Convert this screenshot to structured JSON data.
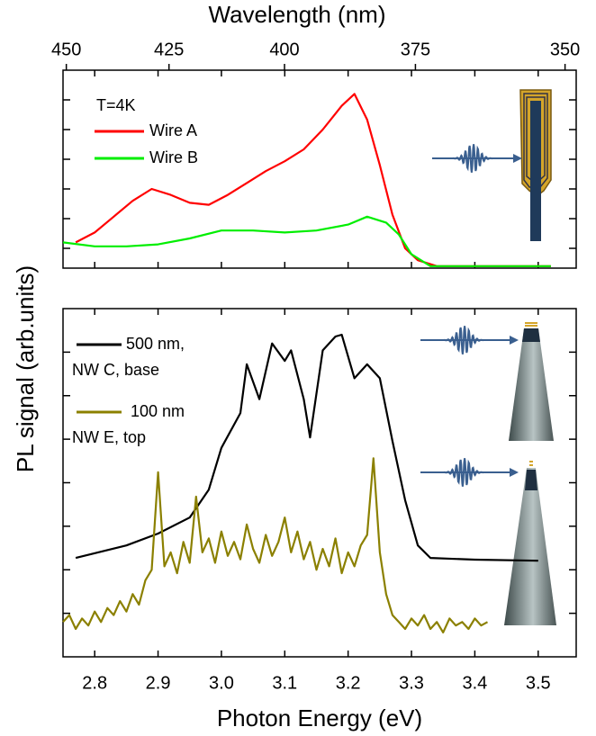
{
  "chart_data": [
    {
      "type": "line",
      "x2label": "Wavelength (nm)",
      "x2ticks": [
        450,
        425,
        400,
        375,
        350
      ],
      "xlim": [
        2.75,
        3.56
      ],
      "ylim": [
        0,
        1
      ],
      "yticks": [
        0.1,
        0.25,
        0.4,
        0.55,
        0.7,
        0.85
      ],
      "annotation": "T=4K",
      "series": [
        {
          "name": "Wire A",
          "color": "#ff0000",
          "x": [
            2.77,
            2.8,
            2.83,
            2.86,
            2.89,
            2.92,
            2.95,
            2.98,
            3.01,
            3.04,
            3.07,
            3.1,
            3.13,
            3.16,
            3.19,
            3.21,
            3.23,
            3.25,
            3.27,
            3.29,
            3.31,
            3.34,
            3.4,
            3.46,
            3.52
          ],
          "values": [
            0.13,
            0.18,
            0.26,
            0.34,
            0.4,
            0.37,
            0.33,
            0.32,
            0.37,
            0.43,
            0.49,
            0.54,
            0.6,
            0.7,
            0.82,
            0.88,
            0.75,
            0.52,
            0.27,
            0.1,
            0.04,
            0.01,
            0.01,
            0.01,
            0.01
          ]
        },
        {
          "name": "Wire B",
          "color": "#00ee00",
          "x": [
            2.75,
            2.8,
            2.85,
            2.9,
            2.95,
            3.0,
            3.05,
            3.1,
            3.15,
            3.2,
            3.23,
            3.26,
            3.28,
            3.3,
            3.33,
            3.4,
            3.52
          ],
          "values": [
            0.13,
            0.11,
            0.11,
            0.12,
            0.15,
            0.19,
            0.19,
            0.18,
            0.19,
            0.22,
            0.26,
            0.23,
            0.17,
            0.07,
            0.01,
            0.01,
            0.01
          ]
        }
      ]
    },
    {
      "type": "line",
      "xlabel": "Photon Energy (eV)",
      "ylabel": "PL signal (arb.units)",
      "xlim": [
        2.75,
        3.56
      ],
      "xticks": [
        2.8,
        2.9,
        {
          "value": 3,
          "label": "3.0"
        },
        3.1,
        3.2,
        3.3,
        3.4,
        3.5
      ],
      "ylim": [
        0,
        1
      ],
      "yticks": [
        0.125,
        0.25,
        0.375,
        0.5,
        0.625,
        0.75,
        0.875
      ],
      "series": [
        {
          "name": "500 nm,",
          "annotation": "NW C, base",
          "color": "#000000",
          "x": [
            2.77,
            2.85,
            2.9,
            2.95,
            2.98,
            3.0,
            3.03,
            3.04,
            3.06,
            3.08,
            3.1,
            3.11,
            3.13,
            3.14,
            3.16,
            3.18,
            3.19,
            3.21,
            3.23,
            3.25,
            3.27,
            3.29,
            3.31,
            3.33,
            3.4,
            3.5
          ],
          "values": [
            0.284,
            0.32,
            0.354,
            0.4,
            0.48,
            0.6,
            0.7,
            0.84,
            0.74,
            0.9,
            0.85,
            0.88,
            0.74,
            0.63,
            0.88,
            0.92,
            0.925,
            0.8,
            0.84,
            0.8,
            0.62,
            0.45,
            0.32,
            0.284,
            0.279,
            0.276
          ]
        },
        {
          "name": "100 nm",
          "annotation": "NW E, top",
          "color": "#8b8000",
          "x": [
            2.75,
            2.76,
            2.77,
            2.78,
            2.79,
            2.8,
            2.81,
            2.82,
            2.83,
            2.84,
            2.85,
            2.86,
            2.87,
            2.88,
            2.89,
            2.9,
            2.91,
            2.92,
            2.93,
            2.94,
            2.95,
            2.96,
            2.97,
            2.98,
            2.99,
            3.0,
            3.01,
            3.02,
            3.03,
            3.04,
            3.05,
            3.06,
            3.07,
            3.08,
            3.09,
            3.1,
            3.11,
            3.12,
            3.13,
            3.14,
            3.15,
            3.16,
            3.17,
            3.18,
            3.19,
            3.2,
            3.21,
            3.22,
            3.23,
            3.24,
            3.25,
            3.26,
            3.27,
            3.28,
            3.29,
            3.3,
            3.31,
            3.32,
            3.33,
            3.34,
            3.35,
            3.36,
            3.37,
            3.38,
            3.39,
            3.4,
            3.41,
            3.42
          ],
          "values": [
            0.1,
            0.12,
            0.08,
            0.11,
            0.09,
            0.13,
            0.1,
            0.14,
            0.12,
            0.16,
            0.13,
            0.18,
            0.15,
            0.22,
            0.25,
            0.53,
            0.26,
            0.3,
            0.24,
            0.33,
            0.27,
            0.46,
            0.3,
            0.34,
            0.27,
            0.36,
            0.29,
            0.33,
            0.28,
            0.38,
            0.31,
            0.27,
            0.35,
            0.29,
            0.33,
            0.4,
            0.3,
            0.36,
            0.28,
            0.33,
            0.25,
            0.31,
            0.26,
            0.34,
            0.24,
            0.3,
            0.26,
            0.32,
            0.35,
            0.57,
            0.3,
            0.18,
            0.12,
            0.1,
            0.08,
            0.11,
            0.09,
            0.12,
            0.08,
            0.1,
            0.07,
            0.11,
            0.09,
            0.1,
            0.08,
            0.11,
            0.09,
            0.1
          ]
        }
      ]
    }
  ]
}
